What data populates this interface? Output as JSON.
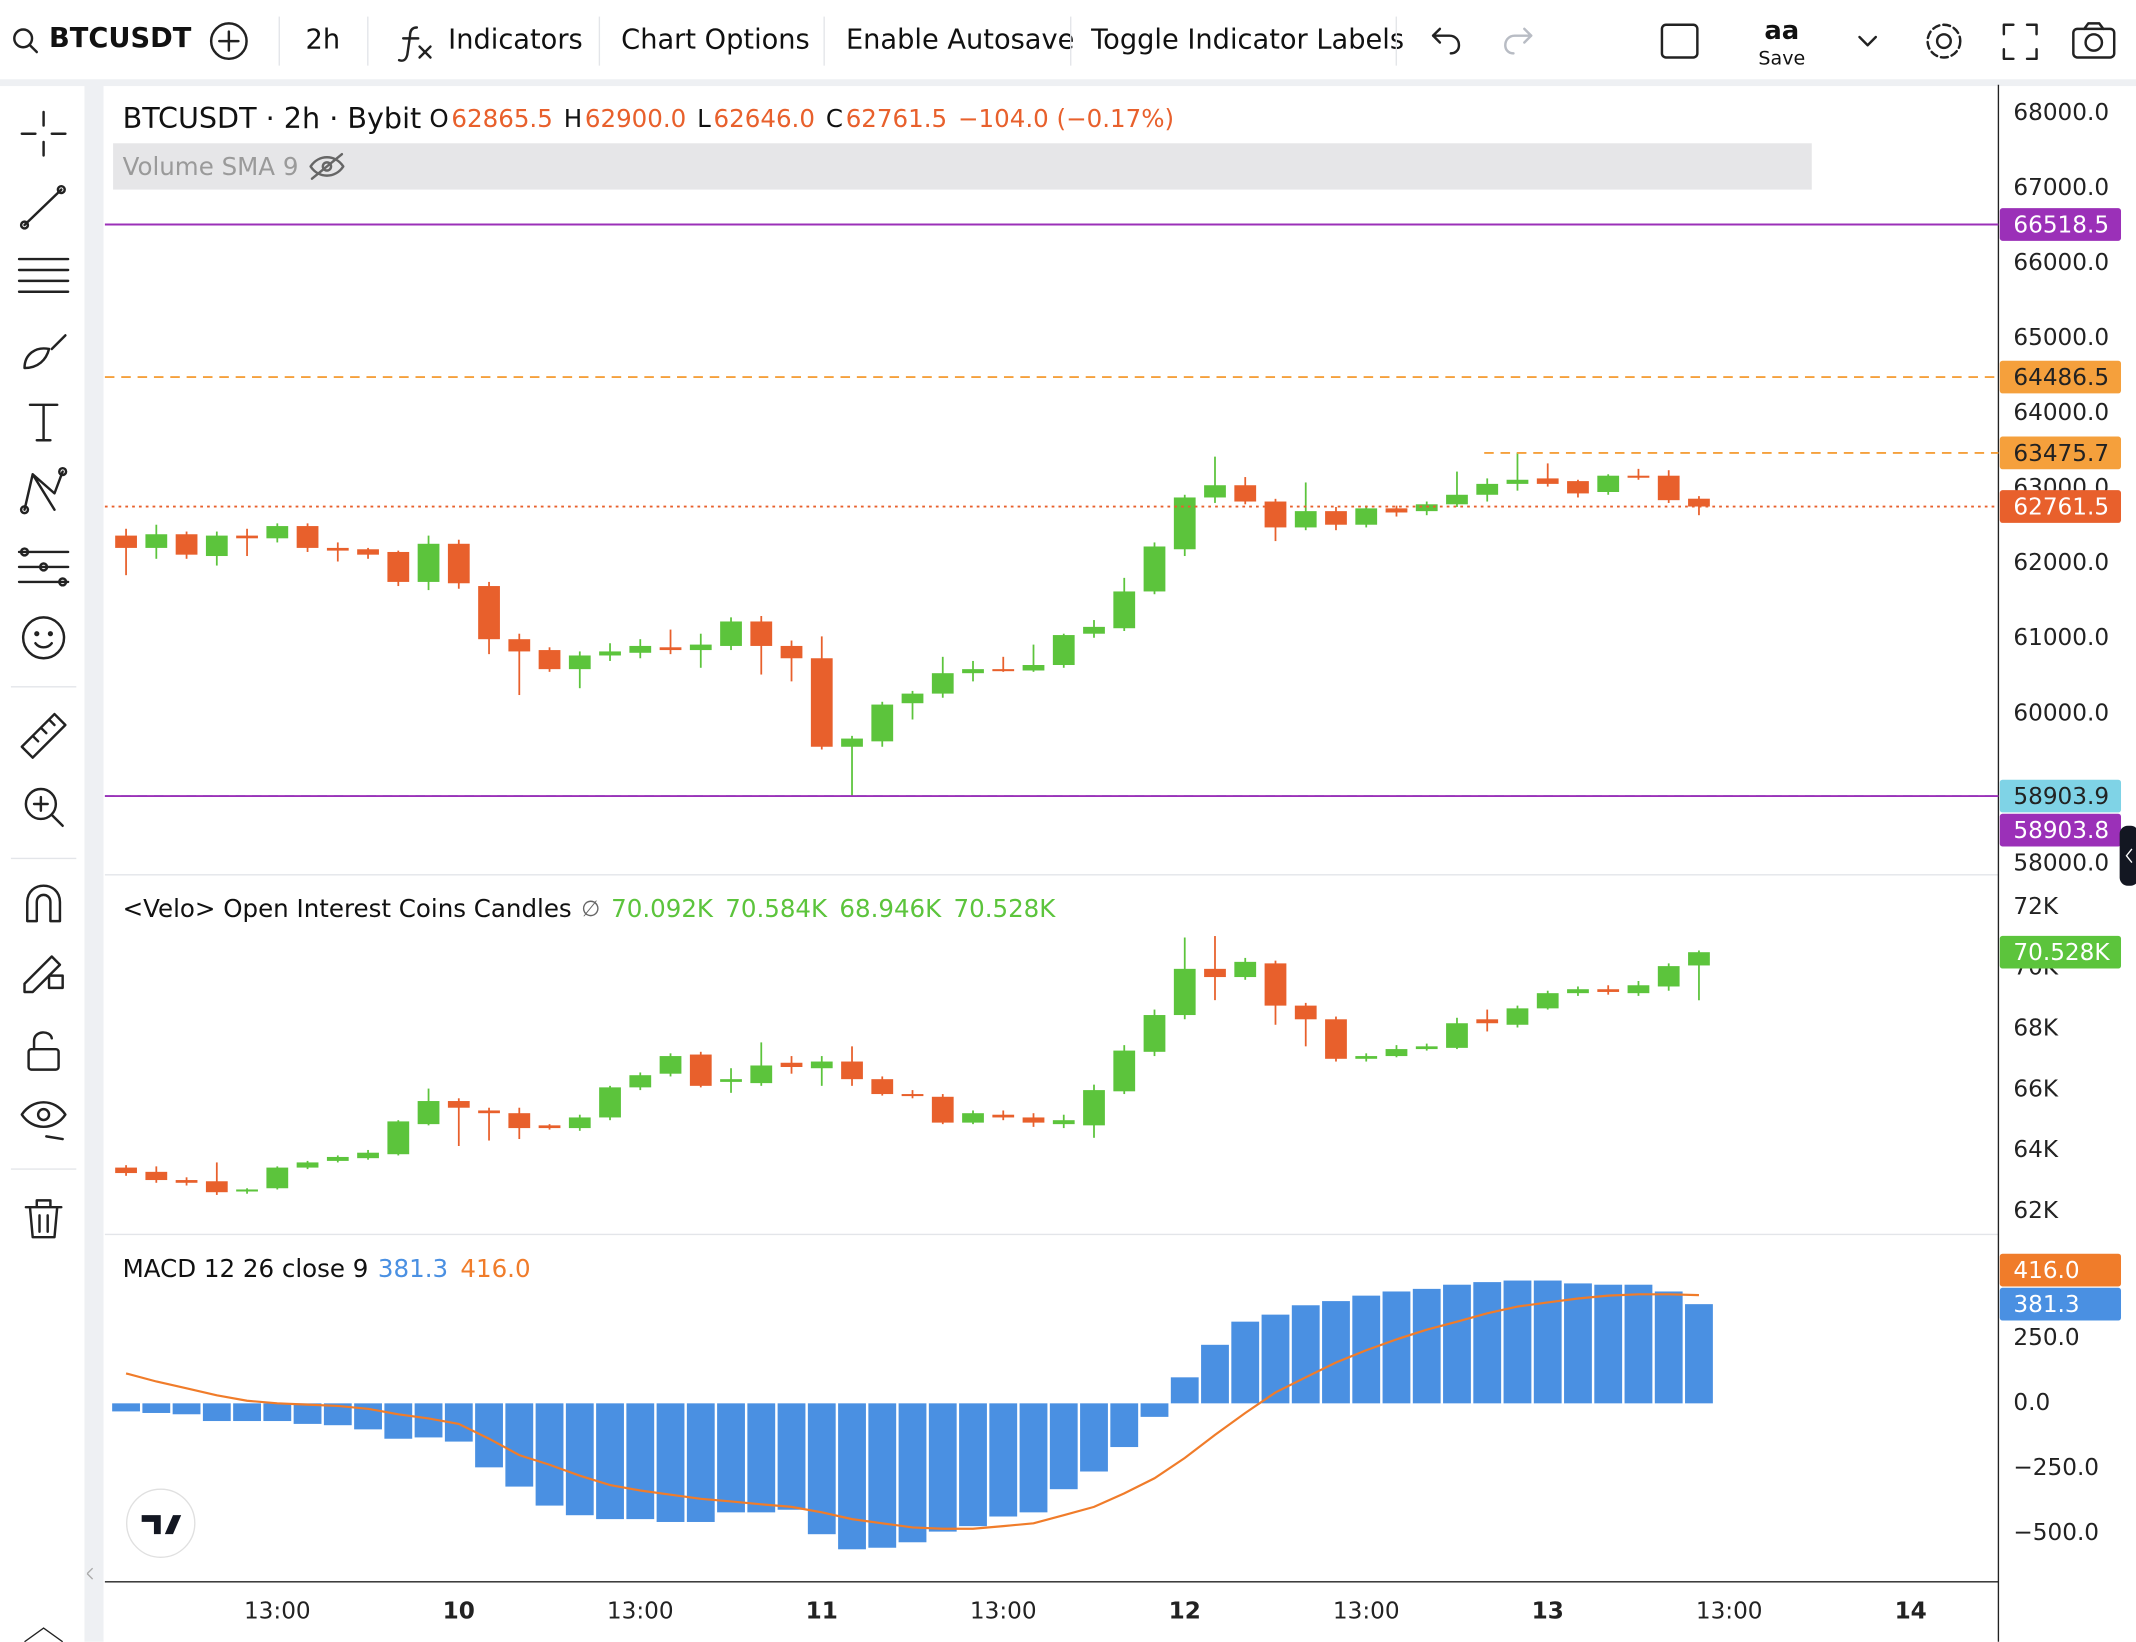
{
  "toolbar": {
    "symbol": "BTCUSDT",
    "interval": "2h",
    "indicators": "Indicators",
    "chart_options": "Chart Options",
    "autosave": "Enable Autosave",
    "toggle_labels": "Toggle Indicator Labels",
    "layout_name": "aa",
    "save": "Save"
  },
  "chart_data": [
    {
      "type": "candlestick",
      "title": "BTCUSDT · 2h · Bybit",
      "legend": [
        {
          "key": "O",
          "text": "62865.5"
        },
        {
          "key": "H",
          "text": "62900.0"
        },
        {
          "key": "L",
          "text": "62646.0"
        },
        {
          "key": "C",
          "text": "62761.5"
        }
      ],
      "change": "−104.0 (−0.17%)",
      "indicator_label": "Volume SMA 9",
      "up_color": "#5cc43c",
      "down_color": "#e8602c",
      "open": [
        62374,
        62210,
        62392,
        62102,
        62374,
        62338,
        62501,
        62210,
        62192,
        62156,
        61757,
        62265,
        61702,
        60994,
        60849,
        60595,
        60777,
        60813,
        60886,
        60849,
        60904,
        61230,
        60904,
        60740,
        59561,
        59633,
        60141,
        60269,
        60541,
        60595,
        60577,
        60650,
        61067,
        61140,
        61630,
        62192,
        62882,
        63045,
        62828,
        62483,
        62700,
        62519,
        62737,
        62700,
        62791,
        62918,
        63063,
        63136,
        63100,
        62955,
        63172,
        63172,
        62865.5
      ],
      "high": [
        62465,
        62519,
        62428,
        62428,
        62465,
        62537,
        62537,
        62283,
        62210,
        62174,
        62374,
        62319,
        61757,
        61067,
        60886,
        60831,
        60940,
        60994,
        61122,
        61067,
        61285,
        61303,
        60976,
        61031,
        59706,
        60160,
        60305,
        60759,
        60704,
        60759,
        60922,
        61067,
        61249,
        61811,
        62283,
        62918,
        63426,
        63154,
        62864,
        63082,
        62755,
        62773,
        62773,
        62828,
        63227,
        63136,
        63481,
        63336,
        63118,
        63191,
        63263,
        63245,
        62900
      ],
      "low": [
        61847,
        62065,
        62065,
        61975,
        62102,
        62283,
        62156,
        62029,
        62065,
        61702,
        61648,
        61666,
        60795,
        60250,
        60559,
        60341,
        60704,
        60740,
        60795,
        60613,
        60849,
        60523,
        60432,
        59524,
        58907,
        59561,
        59924,
        60214,
        60432,
        60559,
        60559,
        60613,
        61013,
        61103,
        61593,
        62102,
        62809,
        62791,
        62301,
        62446,
        62446,
        62483,
        62628,
        62646,
        62755,
        62828,
        62973,
        63027,
        62882,
        62918,
        63118,
        62809,
        62646
      ],
      "close": [
        62210,
        62392,
        62120,
        62374,
        62338,
        62501,
        62210,
        62174,
        62120,
        61757,
        62265,
        61739,
        60994,
        60831,
        60595,
        60777,
        60831,
        60904,
        60849,
        60922,
        61230,
        60904,
        60740,
        59561,
        59670,
        60123,
        60269,
        60541,
        60595,
        60577,
        60650,
        61049,
        61158,
        61630,
        62229,
        62882,
        63045,
        62828,
        62483,
        62700,
        62519,
        62737,
        62682,
        62791,
        62918,
        63063,
        63118,
        63063,
        62936,
        63172,
        63154,
        62846,
        62761.5
      ],
      "ylim": [
        57855,
        68381
      ],
      "yticks": [
        {
          "value": 58000,
          "label": "58000.0"
        },
        {
          "value": 60000,
          "label": "60000.0"
        },
        {
          "value": 61000,
          "label": "61000.0"
        },
        {
          "value": 62000,
          "label": "62000.0"
        },
        {
          "value": 63000,
          "label": "63000.0"
        },
        {
          "value": 64000,
          "label": "64000.0"
        },
        {
          "value": 65000,
          "label": "65000.0"
        },
        {
          "value": 66000,
          "label": "66000.0"
        },
        {
          "value": 67000,
          "label": "67000.0"
        },
        {
          "value": 68000,
          "label": "68000.0"
        }
      ],
      "hlines": [
        {
          "value": 66518.5,
          "color": "#9b30b8",
          "text_color": "#ffffff",
          "style": "solid"
        },
        {
          "value": 64486.5,
          "color": "#f5a03c",
          "text_color": "#222222",
          "style": "dashed"
        },
        {
          "value": 63475.7,
          "color": "#f5a03c",
          "text_color": "#222222",
          "style": "dashed",
          "x_start": 44.9
        },
        {
          "value": 62761.5,
          "color": "#e8602c",
          "text_color": "#ffffff",
          "style": "dotted"
        },
        {
          "value": 58903.9,
          "color": "#7fd3e6",
          "text_color": "#222222",
          "style": "dashed"
        },
        {
          "value": 58903.8,
          "color": "#9b30b8",
          "text_color": "#ffffff",
          "style": "solid"
        }
      ]
    },
    {
      "type": "candlestick",
      "title": "<Velo> Open Interest Coins Candles",
      "glyph": "∅",
      "legend_values": [
        "70.092K",
        "70.584K",
        "68.946K",
        "70.528K"
      ],
      "last_label": "70.528K",
      "up_color": "#5cc43c",
      "down_color": "#e8602c",
      "open": [
        63440,
        63300,
        63030,
        62990,
        62670,
        62760,
        63440,
        63660,
        63750,
        63880,
        64870,
        65630,
        65320,
        65230,
        64830,
        64740,
        65090,
        66080,
        66530,
        67160,
        66260,
        66220,
        66890,
        66710,
        66930,
        66350,
        65860,
        65770,
        64920,
        65180,
        65090,
        64870,
        64830,
        65950,
        67250,
        68460,
        69980,
        69710,
        70160,
        68770,
        68320,
        67020,
        67110,
        67340,
        67380,
        68320,
        68140,
        68680,
        69180,
        69310,
        69180,
        69400,
        70092
      ],
      "high": [
        63520,
        63480,
        63120,
        63610,
        62760,
        63480,
        63660,
        63840,
        64020,
        65000,
        66040,
        65720,
        65410,
        65410,
        64870,
        65180,
        66130,
        66570,
        67200,
        67250,
        66710,
        67560,
        67110,
        67110,
        67430,
        66440,
        65990,
        65860,
        65320,
        65320,
        65230,
        65180,
        66170,
        67470,
        68640,
        71010,
        71060,
        70340,
        70250,
        68860,
        68410,
        67200,
        67470,
        67520,
        68370,
        68640,
        68770,
        69260,
        69400,
        69440,
        69580,
        70160,
        70584
      ],
      "low": [
        63170,
        62940,
        62850,
        62540,
        62580,
        62720,
        63390,
        63610,
        63700,
        63840,
        64830,
        64150,
        64330,
        64380,
        64690,
        64650,
        65000,
        65990,
        66440,
        66080,
        65900,
        66130,
        66530,
        66130,
        66130,
        65810,
        65720,
        64870,
        64870,
        65000,
        64780,
        64740,
        64420,
        65860,
        67110,
        68320,
        68950,
        69620,
        68140,
        67430,
        66930,
        66930,
        67070,
        67290,
        67340,
        67920,
        68050,
        68640,
        69090,
        69130,
        69090,
        69260,
        68946
      ],
      "close": [
        63260,
        63030,
        62940,
        62630,
        62720,
        63440,
        63610,
        63790,
        63930,
        64960,
        65630,
        65410,
        65230,
        64740,
        64740,
        65090,
        66080,
        66480,
        67110,
        66130,
        66350,
        66800,
        66750,
        66930,
        66350,
        65860,
        65810,
        64920,
        65230,
        65090,
        64920,
        65000,
        65990,
        67290,
        68460,
        69980,
        69710,
        70210,
        68770,
        68320,
        67020,
        67110,
        67340,
        67430,
        68190,
        68190,
        68680,
        69180,
        69310,
        69220,
        69440,
        70070,
        70528
      ],
      "ylim": [
        61240,
        73030
      ],
      "yticks": [
        {
          "value": 62000,
          "label": "62K"
        },
        {
          "value": 64000,
          "label": "64K"
        },
        {
          "value": 66000,
          "label": "66K"
        },
        {
          "value": 68000,
          "label": "68K"
        },
        {
          "value": 70000,
          "label": "70K"
        },
        {
          "value": 72000,
          "label": "72K"
        }
      ]
    },
    {
      "type": "macd",
      "title": "MACD 12 26 close 9",
      "series": [
        {
          "style": "bar",
          "color": "#4a90e2",
          "last_label": "381.3",
          "values": [
            -31,
            -37,
            -42,
            -68,
            -68,
            -68,
            -79,
            -84,
            -100,
            -136,
            -131,
            -147,
            -246,
            -320,
            -393,
            -430,
            -445,
            -445,
            -456,
            -456,
            -419,
            -419,
            -409,
            -503,
            -561,
            -555,
            -534,
            -493,
            -472,
            -435,
            -419,
            -330,
            -262,
            -168,
            -52,
            100,
            225,
            314,
            341,
            377,
            393,
            414,
            430,
            440,
            456,
            466,
            472,
            472,
            461,
            456,
            456,
            430,
            381.3
          ]
        },
        {
          "style": "line",
          "color": "#f07c2a",
          "last_label": "416.0",
          "values": [
            115,
            84,
            58,
            31,
            10,
            0,
            -5,
            -10,
            -21,
            -42,
            -58,
            -79,
            -136,
            -199,
            -236,
            -278,
            -314,
            -335,
            -351,
            -367,
            -377,
            -388,
            -398,
            -419,
            -445,
            -461,
            -477,
            -482,
            -482,
            -472,
            -461,
            -430,
            -398,
            -346,
            -288,
            -210,
            -121,
            -37,
            42,
            100,
            157,
            204,
            246,
            283,
            314,
            346,
            372,
            388,
            403,
            414,
            419,
            419,
            416
          ]
        }
      ],
      "ylim": [
        -686,
        644
      ],
      "yticks": [
        {
          "value": -500,
          "label": "−500.0"
        },
        {
          "value": -250,
          "label": "−250.0"
        },
        {
          "value": 0,
          "label": "0.0"
        },
        {
          "value": 250,
          "label": "250.0"
        }
      ],
      "xlim": [
        -0.7,
        61.9
      ],
      "xticks": [
        {
          "value": 5,
          "label": "13:00"
        },
        {
          "value": 11,
          "label": "10"
        },
        {
          "value": 17,
          "label": "13:00"
        },
        {
          "value": 23,
          "label": "11"
        },
        {
          "value": 29,
          "label": "13:00"
        },
        {
          "value": 35,
          "label": "12"
        },
        {
          "value": 41,
          "label": "13:00"
        },
        {
          "value": 47,
          "label": "13"
        },
        {
          "value": 53,
          "label": "13:00"
        },
        {
          "value": 59,
          "label": "14"
        }
      ]
    }
  ]
}
